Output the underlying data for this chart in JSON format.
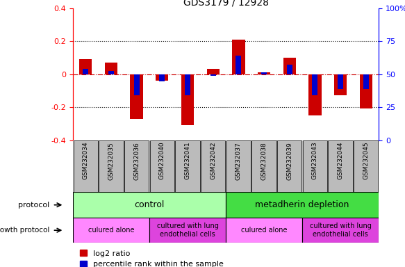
{
  "title": "GDS3179 / 12928",
  "samples": [
    "GSM232034",
    "GSM232035",
    "GSM232036",
    "GSM232040",
    "GSM232041",
    "GSM232042",
    "GSM232037",
    "GSM232038",
    "GSM232039",
    "GSM232043",
    "GSM232044",
    "GSM232045"
  ],
  "log2_ratio": [
    0.09,
    0.07,
    -0.27,
    -0.04,
    -0.31,
    0.03,
    0.21,
    0.01,
    0.1,
    -0.25,
    -0.13,
    -0.21
  ],
  "percentile": [
    0.03,
    0.02,
    -0.13,
    -0.045,
    -0.13,
    -0.01,
    0.11,
    0.01,
    0.055,
    -0.13,
    -0.09,
    -0.09
  ],
  "ylim_left": [
    -0.4,
    0.4
  ],
  "ylim_right": [
    0,
    100
  ],
  "bar_color_red": "#cc0000",
  "bar_color_blue": "#0000cc",
  "zero_line_color": "#cc0000",
  "left_tick_vals": [
    -0.4,
    -0.2,
    0.0,
    0.2,
    0.4
  ],
  "left_tick_labels": [
    "-0.4",
    "-0.2",
    "0",
    "0.2",
    "0.4"
  ],
  "right_tick_vals": [
    0,
    25,
    50,
    75,
    100
  ],
  "right_tick_labels": [
    "0",
    "25",
    "50",
    "75",
    "100%"
  ],
  "protocol_control_label": "control",
  "protocol_meta_label": "metadherin depletion",
  "protocol_color_light": "#aaffaa",
  "protocol_color_dark": "#44dd44",
  "growth_alone_label": "culured alone",
  "growth_lung_label": "cultured with lung\nendothelial cells",
  "growth_color_light": "#ff88ff",
  "growth_color_dark": "#dd44dd",
  "sample_bg_color": "#bbbbbb",
  "title_fontsize": 10,
  "legend_fontsize": 8,
  "bar_width": 0.5,
  "blue_bar_width": 0.22
}
